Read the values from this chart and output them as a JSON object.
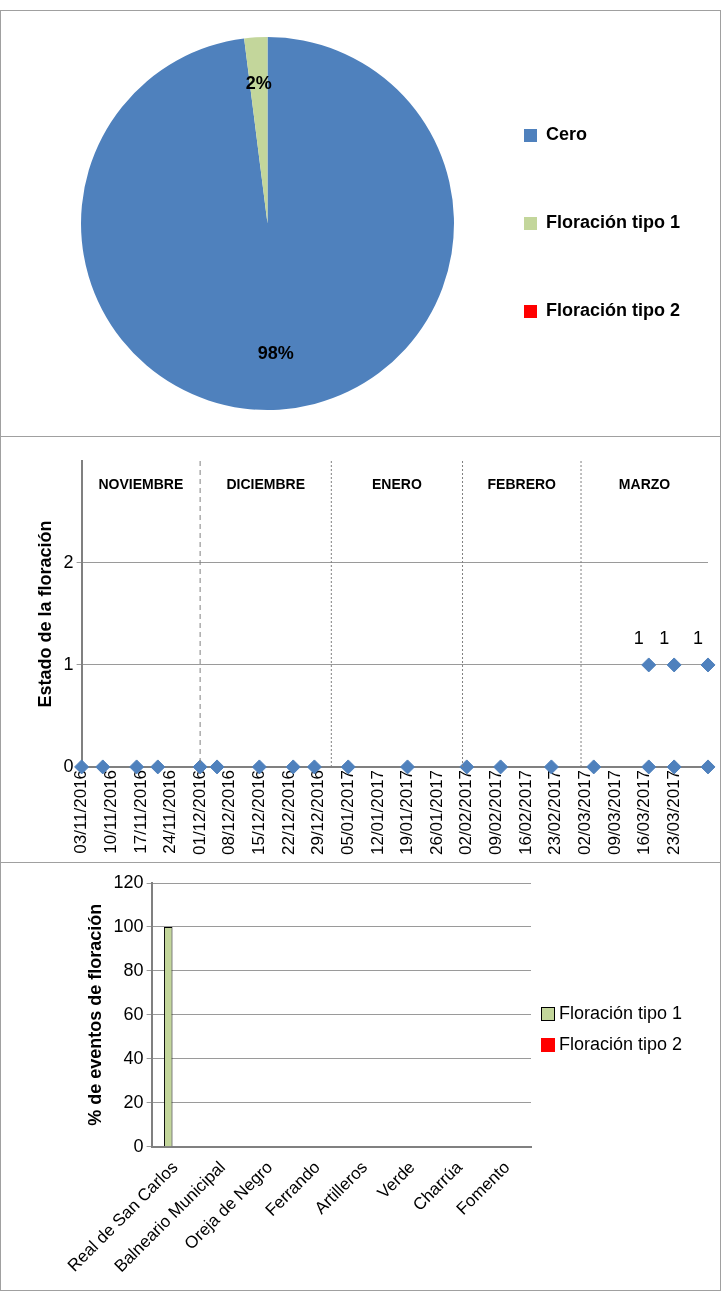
{
  "chart_data": [
    {
      "type": "pie",
      "categories": [
        "Cero",
        "Floración tipo 1",
        "Floración tipo 2"
      ],
      "values": [
        98,
        2,
        0
      ],
      "colors": [
        "#4f81bd",
        "#c3d69b",
        "#ff0000"
      ],
      "value_labels": [
        "98%",
        "2%",
        null
      ],
      "legend": "right"
    },
    {
      "type": "scatter",
      "ylabel": "Estado de la floración",
      "marker": "diamond",
      "grid": "y",
      "legend": false,
      "xlim": [
        "2016-11-03",
        "2017-03-31"
      ],
      "ylim": [
        0,
        3
      ],
      "yticks": [
        0,
        1,
        2
      ],
      "xticks": [
        {
          "value": "2016-11-03",
          "label": "03/11/2016"
        },
        {
          "value": "2016-11-10",
          "label": "10/11/2016"
        },
        {
          "value": "2016-11-17",
          "label": "17/11/2016"
        },
        {
          "value": "2016-11-24",
          "label": "24/11/2016"
        },
        {
          "value": "2016-12-01",
          "label": "01/12/2016"
        },
        {
          "value": "2016-12-08",
          "label": "08/12/2016"
        },
        {
          "value": "2016-12-15",
          "label": "15/12/2016"
        },
        {
          "value": "2016-12-22",
          "label": "22/12/2016"
        },
        {
          "value": "2016-12-29",
          "label": "29/12/2016"
        },
        {
          "value": "2017-01-05",
          "label": "05/01/2017"
        },
        {
          "value": "2017-01-12",
          "label": "12/01/2017"
        },
        {
          "value": "2017-01-19",
          "label": "19/01/2017"
        },
        {
          "value": "2017-01-26",
          "label": "26/01/2017"
        },
        {
          "value": "2017-02-02",
          "label": "02/02/2017"
        },
        {
          "value": "2017-02-09",
          "label": "09/02/2017"
        },
        {
          "value": "2017-02-16",
          "label": "16/02/2017"
        },
        {
          "value": "2017-02-23",
          "label": "23/02/2017"
        },
        {
          "value": "2017-03-02",
          "label": "02/03/2017"
        },
        {
          "value": "2017-03-09",
          "label": "09/03/2017"
        },
        {
          "value": "2017-03-16",
          "label": "16/03/2017"
        },
        {
          "value": "2017-03-23",
          "label": "23/03/2017"
        }
      ],
      "series": [
        {
          "color": "#4f81bd",
          "x": [
            "2016-11-03",
            "2016-11-08",
            "2016-11-16",
            "2016-11-21",
            "2016-12-01",
            "2016-12-05",
            "2016-12-15",
            "2016-12-23",
            "2016-12-28",
            "2017-01-05",
            "2017-01-19",
            "2017-02-02",
            "2017-02-10",
            "2017-02-22",
            "2017-03-04",
            "2017-03-17",
            "2017-03-23",
            "2017-03-31"
          ],
          "values": [
            0,
            0,
            0,
            0,
            0,
            0,
            0,
            0,
            0,
            0,
            0,
            0,
            0,
            0,
            0,
            0,
            0,
            0
          ]
        },
        {
          "color": "#4f81bd",
          "x": [
            "2017-03-17",
            "2017-03-23",
            "2017-03-31"
          ],
          "values": [
            1,
            1,
            1
          ],
          "value_labels": [
            "1",
            "1",
            "1"
          ]
        }
      ],
      "ref_lines": [
        {
          "axis": "x",
          "value": "2016-12-01",
          "line_style": "dashed",
          "color": "#808080"
        },
        {
          "axis": "x",
          "value": "2017-01-01",
          "line_style": "dotted",
          "color": "#808080"
        },
        {
          "axis": "x",
          "value": "2017-02-01",
          "line_style": "dotted",
          "color": "#808080"
        },
        {
          "axis": "x",
          "value": "2017-03-01",
          "line_style": "dotted",
          "color": "#808080"
        }
      ],
      "annotations": [
        "NOVIEMBRE",
        "DICIEMBRE",
        "ENERO",
        "FEBRERO",
        "MARZO"
      ]
    },
    {
      "type": "bar",
      "ylabel": "% de eventos de floración",
      "categories": [
        "Real de San Carlos",
        "Balneario Municipal",
        "Oreja de Negro",
        "Ferrando",
        "Artilleros",
        "Verde",
        "Charrúa",
        "Fomento"
      ],
      "ylim": [
        0,
        120
      ],
      "yticks": [
        0,
        20,
        40,
        60,
        80,
        100,
        120
      ],
      "grid": "y",
      "legend": "right",
      "series": [
        {
          "name": "Floración tipo 1",
          "color": "#c3d69b",
          "values": [
            100,
            0,
            0,
            0,
            0,
            0,
            0,
            0
          ]
        },
        {
          "name": "Floración tipo 2",
          "color": "#ff0000",
          "values": [
            0,
            0,
            0,
            0,
            0,
            0,
            0,
            0
          ]
        }
      ]
    }
  ]
}
